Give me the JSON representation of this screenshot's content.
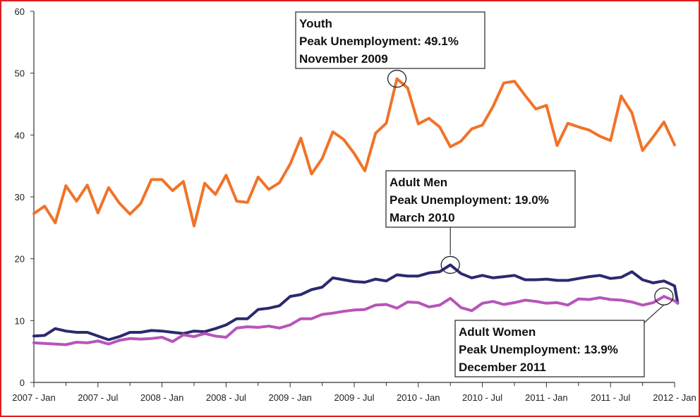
{
  "chart_data": {
    "type": "line",
    "title": "",
    "xlabel": "",
    "ylabel": "",
    "ylim": [
      0,
      60
    ],
    "y_ticks": [
      0,
      10,
      20,
      30,
      40,
      50,
      60
    ],
    "x_tick_labels": [
      "2007 - Jan",
      "2007 - Jul",
      "2008 - Jan",
      "2008 - Jul",
      "2009 - Jan",
      "2009 - Jul",
      "2010 - Jan",
      "2010 - Jul",
      "2011 - Jan",
      "2011 - Jul",
      "2012 - Jan"
    ],
    "x_start": "2007-01",
    "x_end": "2012-01",
    "grid": false,
    "series": [
      {
        "name": "Youth",
        "color": "#f07328",
        "values": [
          27.3,
          28.5,
          25.8,
          31.8,
          29.3,
          31.9,
          27.4,
          31.5,
          29.0,
          27.2,
          28.9,
          32.8,
          32.8,
          31.0,
          32.5,
          25.3,
          32.2,
          30.4,
          33.5,
          29.3,
          29.1,
          33.2,
          31.2,
          32.3,
          35.3,
          39.5,
          33.7,
          36.2,
          40.5,
          39.3,
          37.0,
          34.2,
          40.3,
          41.9,
          49.1,
          47.6,
          41.8,
          42.7,
          41.3,
          38.1,
          39.0,
          41.0,
          41.6,
          44.6,
          48.4,
          48.7,
          46.4,
          44.2,
          44.8,
          38.3,
          41.9,
          41.3,
          40.8,
          39.8,
          39.1,
          46.3,
          43.6,
          37.5,
          39.7,
          42.1,
          38.4
        ]
      },
      {
        "name": "Adult Men",
        "color": "#2b2a6e",
        "values": [
          7.5,
          7.6,
          8.7,
          8.3,
          8.1,
          8.1,
          7.5,
          6.9,
          7.4,
          8.1,
          8.1,
          8.4,
          8.3,
          8.1,
          7.9,
          8.3,
          8.2,
          8.7,
          9.3,
          10.3,
          10.3,
          11.8,
          12.0,
          12.4,
          13.9,
          14.2,
          15.0,
          15.4,
          16.9,
          16.6,
          16.3,
          16.2,
          16.7,
          16.4,
          17.4,
          17.2,
          17.2,
          17.7,
          17.9,
          19.0,
          17.6,
          16.9,
          17.3,
          16.9,
          17.1,
          17.3,
          16.6,
          16.6,
          16.7,
          16.5,
          16.5,
          16.8,
          17.1,
          17.3,
          16.8,
          17.0,
          17.9,
          16.6,
          16.1,
          16.4,
          15.6
        ]
      },
      {
        "name": "Adult Women",
        "color": "#b755b8",
        "values": [
          6.4,
          6.3,
          6.2,
          6.1,
          6.5,
          6.4,
          6.7,
          6.2,
          6.8,
          7.1,
          7.0,
          7.1,
          7.3,
          6.6,
          7.7,
          7.4,
          7.9,
          7.5,
          7.3,
          8.8,
          9.0,
          8.9,
          9.1,
          8.8,
          9.3,
          10.3,
          10.3,
          11.0,
          11.2,
          11.5,
          11.7,
          11.8,
          12.5,
          12.6,
          12.0,
          13.0,
          12.9,
          12.2,
          12.5,
          13.6,
          12.1,
          11.6,
          12.8,
          13.1,
          12.6,
          12.9,
          13.3,
          13.1,
          12.8,
          12.9,
          12.5,
          13.5,
          13.4,
          13.7,
          13.4,
          13.3,
          13.0,
          12.5,
          12.9,
          13.9,
          13.2
        ]
      }
    ],
    "final_point": {
      "index": 60.3,
      "value": 12.8
    },
    "annotations": [
      {
        "series": "Youth",
        "lines": [
          "Youth",
          "Peak Unemployment: 49.1%",
          "November 2009"
        ],
        "point_index": 34,
        "point_value": 49.1
      },
      {
        "series": "Adult Men",
        "lines": [
          "Adult Men",
          "Peak Unemployment: 19.0%",
          "March 2010"
        ],
        "point_index": 39,
        "point_value": 19.0
      },
      {
        "series": "Adult Women",
        "lines": [
          "Adult Women",
          "Peak Unemployment: 13.9%",
          "December 2011"
        ],
        "point_index": 59,
        "point_value": 13.9
      }
    ]
  }
}
